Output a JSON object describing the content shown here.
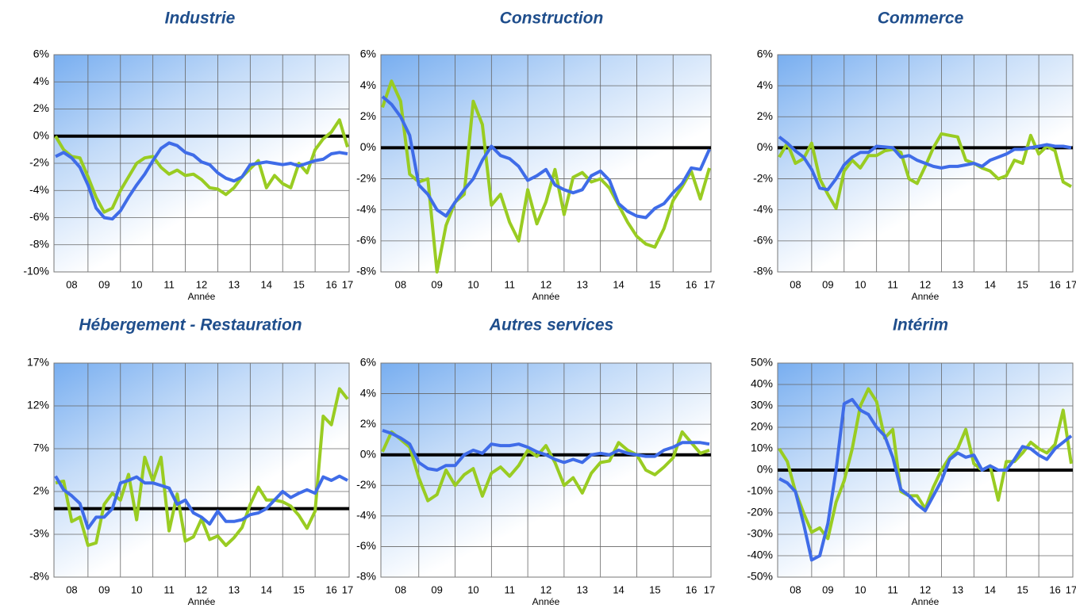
{
  "chart_data": [
    {
      "type": "line",
      "title": "Industrie",
      "x_label": "Année",
      "categories": [
        null,
        null,
        "08",
        null,
        null,
        null,
        "09",
        null,
        null,
        null,
        "10",
        null,
        null,
        null,
        "11",
        null,
        null,
        null,
        "12",
        null,
        null,
        null,
        "13",
        null,
        null,
        null,
        "14",
        null,
        null,
        null,
        "15",
        null,
        null,
        null,
        "16",
        null,
        "17"
      ],
      "series": [
        {
          "color": "#99cc22",
          "values": [
            0,
            -1,
            -1.5,
            -1.6,
            -3,
            -4.5,
            -5.6,
            -5.3,
            -4,
            -3,
            -2,
            -1.6,
            -1.5,
            -2.3,
            -2.8,
            -2.5,
            -2.9,
            -2.8,
            -3.2,
            -3.8,
            -3.9,
            -4.3,
            -3.8,
            -3,
            -2.4,
            -1.8,
            -3.8,
            -2.9,
            -3.5,
            -3.8,
            -2,
            -2.7,
            -1,
            -0.2,
            0.3,
            1.2,
            -0.8
          ]
        },
        {
          "color": "#3f6ce8",
          "values": [
            -1.5,
            -1.2,
            -1.6,
            -2.3,
            -3.6,
            -5.3,
            -6,
            -6.1,
            -5.5,
            -4.5,
            -3.6,
            -2.8,
            -1.8,
            -0.9,
            -0.5,
            -0.7,
            -1.2,
            -1.4,
            -1.9,
            -2.1,
            -2.7,
            -3.1,
            -3.3,
            -3,
            -2.1,
            -2,
            -1.9,
            -2,
            -2.1,
            -2,
            -2.2,
            -2,
            -1.8,
            -1.7,
            -1.3,
            -1.2,
            -1.3
          ]
        }
      ],
      "ylim": [
        -10,
        6
      ],
      "yticks": [
        {
          "value": -10,
          "label": "-10%"
        },
        {
          "value": -8,
          "label": "-8%"
        },
        {
          "value": -6,
          "label": "-6%"
        },
        {
          "value": -4,
          "label": "-4%"
        },
        {
          "value": -2,
          "label": "-2%"
        },
        {
          "value": 0,
          "label": "0%"
        },
        {
          "value": 2,
          "label": "2%"
        },
        {
          "value": 4,
          "label": "4%"
        },
        {
          "value": 6,
          "label": "6%"
        }
      ],
      "grid": true
    },
    {
      "type": "line",
      "title": "Construction",
      "x_label": "Année",
      "categories": [
        null,
        null,
        "08",
        null,
        null,
        null,
        "09",
        null,
        null,
        null,
        "10",
        null,
        null,
        null,
        "11",
        null,
        null,
        null,
        "12",
        null,
        null,
        null,
        "13",
        null,
        null,
        null,
        "14",
        null,
        null,
        null,
        "15",
        null,
        null,
        null,
        "16",
        null,
        "17"
      ],
      "series": [
        {
          "color": "#99cc22",
          "values": [
            2.6,
            4.3,
            3,
            -1.7,
            -2.2,
            -2,
            -8,
            -5,
            -3.5,
            -3,
            3,
            1.5,
            -3.7,
            -3,
            -4.8,
            -6,
            -2.7,
            -4.9,
            -3.5,
            -1.4,
            -4.3,
            -1.9,
            -1.6,
            -2.2,
            -2,
            -2.6,
            -3.7,
            -4.8,
            -5.7,
            -6.2,
            -6.4,
            -5.2,
            -3.4,
            -2.5,
            -1.5,
            -3.3,
            -1.3
          ]
        },
        {
          "color": "#3f6ce8",
          "values": [
            3.3,
            2.8,
            2,
            0.8,
            -2.4,
            -3,
            -4,
            -4.4,
            -3.5,
            -2.7,
            -2,
            -0.8,
            0.1,
            -0.5,
            -0.7,
            -1.2,
            -2.1,
            -1.8,
            -1.4,
            -2.4,
            -2.7,
            -2.9,
            -2.7,
            -1.8,
            -1.5,
            -2.1,
            -3.6,
            -4.1,
            -4.4,
            -4.5,
            -3.9,
            -3.6,
            -2.9,
            -2.3,
            -1.3,
            -1.4,
            -0.1
          ]
        }
      ],
      "ylim": [
        -8,
        6
      ],
      "yticks": [
        {
          "value": -8,
          "label": "-8%"
        },
        {
          "value": -6,
          "label": "-6%"
        },
        {
          "value": -4,
          "label": "-4%"
        },
        {
          "value": -2,
          "label": "-2%"
        },
        {
          "value": 0,
          "label": "0%"
        },
        {
          "value": 2,
          "label": "2%"
        },
        {
          "value": 4,
          "label": "4%"
        },
        {
          "value": 6,
          "label": "6%"
        }
      ],
      "grid": true
    },
    {
      "type": "line",
      "title": "Commerce",
      "x_label": "Année",
      "categories": [
        null,
        null,
        "08",
        null,
        null,
        null,
        "09",
        null,
        null,
        null,
        "10",
        null,
        null,
        null,
        "11",
        null,
        null,
        null,
        "12",
        null,
        null,
        null,
        "13",
        null,
        null,
        null,
        "14",
        null,
        null,
        null,
        "15",
        null,
        null,
        null,
        "16",
        null,
        "17"
      ],
      "series": [
        {
          "color": "#99cc22",
          "values": [
            -0.6,
            0.3,
            -1,
            -0.7,
            0.3,
            -2,
            -3,
            -3.9,
            -1.5,
            -0.8,
            -1.3,
            -0.5,
            -0.5,
            -0.2,
            -0.1,
            -0.3,
            -2,
            -2.3,
            -1.2,
            0,
            0.9,
            0.8,
            0.7,
            -0.8,
            -1,
            -1.3,
            -1.5,
            -2,
            -1.8,
            -0.8,
            -1,
            0.8,
            -0.4,
            0.1,
            -0.2,
            -2.2,
            -2.5
          ]
        },
        {
          "color": "#3f6ce8",
          "values": [
            0.7,
            0.3,
            -0.2,
            -0.6,
            -1.4,
            -2.6,
            -2.7,
            -2,
            -1.1,
            -0.6,
            -0.3,
            -0.3,
            0.1,
            0.05,
            0,
            -0.6,
            -0.5,
            -0.8,
            -1,
            -1.2,
            -1.3,
            -1.2,
            -1.2,
            -1.1,
            -1,
            -1.2,
            -0.8,
            -0.6,
            -0.4,
            -0.1,
            -0.1,
            0,
            0.1,
            0.2,
            0.1,
            0.1,
            0
          ]
        }
      ],
      "ylim": [
        -8,
        6
      ],
      "yticks": [
        {
          "value": -8,
          "label": "-8%"
        },
        {
          "value": -6,
          "label": "-6%"
        },
        {
          "value": -4,
          "label": "-4%"
        },
        {
          "value": -2,
          "label": "-2%"
        },
        {
          "value": 0,
          "label": "0%"
        },
        {
          "value": 2,
          "label": "2%"
        },
        {
          "value": 4,
          "label": "4%"
        },
        {
          "value": 6,
          "label": "6%"
        }
      ],
      "grid": true
    },
    {
      "type": "line",
      "title": "Hébergement - Restauration",
      "x_label": "Année",
      "categories": [
        null,
        null,
        "08",
        null,
        null,
        null,
        "09",
        null,
        null,
        null,
        "10",
        null,
        null,
        null,
        "11",
        null,
        null,
        null,
        "12",
        null,
        null,
        null,
        "13",
        null,
        null,
        null,
        "14",
        null,
        null,
        null,
        "15",
        null,
        null,
        null,
        "16",
        null,
        "17"
      ],
      "series": [
        {
          "color": "#99cc22",
          "values": [
            3,
            3.2,
            -1.5,
            -1,
            -4.3,
            -4,
            0.5,
            1.8,
            1,
            4,
            -1.3,
            6,
            3.2,
            6,
            -2.6,
            1.7,
            -3.8,
            -3.3,
            -1.2,
            -3.6,
            -3.2,
            -4.3,
            -3.4,
            -2.2,
            0.5,
            2.5,
            1,
            1,
            0.8,
            0.3,
            -0.8,
            -2.3,
            -0.3,
            10.8,
            9.8,
            14,
            12.8
          ]
        },
        {
          "color": "#3f6ce8",
          "values": [
            3.8,
            2.2,
            1.5,
            0.6,
            -2.3,
            -1,
            -1,
            0,
            3,
            3.3,
            3.7,
            3,
            3,
            2.7,
            2.4,
            0.5,
            1,
            -0.5,
            -1,
            -1.8,
            -0.3,
            -1.5,
            -1.5,
            -1.3,
            -0.7,
            -0.5,
            0,
            1,
            2,
            1.3,
            1.8,
            2.2,
            1.8,
            3.7,
            3.3,
            3.8,
            3.3
          ]
        }
      ],
      "ylim": [
        -8,
        17
      ],
      "yticks": [
        {
          "value": -8,
          "label": "-8%"
        },
        {
          "value": -3,
          "label": "-3%"
        },
        {
          "value": 2,
          "label": "2%"
        },
        {
          "value": 7,
          "label": "7%"
        },
        {
          "value": 12,
          "label": "12%"
        },
        {
          "value": 17,
          "label": "17%"
        }
      ],
      "grid": true
    },
    {
      "type": "line",
      "title": "Autres services",
      "x_label": "Année",
      "categories": [
        null,
        null,
        "08",
        null,
        null,
        null,
        "09",
        null,
        null,
        null,
        "10",
        null,
        null,
        null,
        "11",
        null,
        null,
        null,
        "12",
        null,
        null,
        null,
        "13",
        null,
        null,
        null,
        "14",
        null,
        null,
        null,
        "15",
        null,
        null,
        null,
        "16",
        null,
        "17"
      ],
      "series": [
        {
          "color": "#99cc22",
          "values": [
            0.2,
            1.5,
            1,
            0.5,
            -1.5,
            -3,
            -2.6,
            -1,
            -2,
            -1.3,
            -0.9,
            -2.7,
            -1.2,
            -0.8,
            -1.4,
            -0.7,
            0.3,
            -0.1,
            0.6,
            -0.5,
            -2,
            -1.5,
            -2.5,
            -1.2,
            -0.5,
            -0.4,
            0.8,
            0.3,
            0,
            -1,
            -1.3,
            -0.8,
            -0.2,
            1.5,
            0.8,
            0.1,
            0.3
          ]
        },
        {
          "color": "#3f6ce8",
          "values": [
            1.6,
            1.4,
            1.1,
            0.7,
            -0.5,
            -0.9,
            -1,
            -0.7,
            -0.7,
            0,
            0.3,
            0.1,
            0.7,
            0.6,
            0.6,
            0.7,
            0.5,
            0.2,
            0,
            -0.3,
            -0.5,
            -0.3,
            -0.5,
            0,
            0.1,
            0,
            0.3,
            0.1,
            0,
            -0.1,
            -0.1,
            0.3,
            0.5,
            0.8,
            0.8,
            0.8,
            0.7
          ]
        }
      ],
      "ylim": [
        -8,
        6
      ],
      "yticks": [
        {
          "value": -8,
          "label": "-8%"
        },
        {
          "value": -6,
          "label": "-6%"
        },
        {
          "value": -4,
          "label": "-4%"
        },
        {
          "value": -2,
          "label": "-2%"
        },
        {
          "value": 0,
          "label": "0%"
        },
        {
          "value": 2,
          "label": "2%"
        },
        {
          "value": 4,
          "label": "4%"
        },
        {
          "value": 6,
          "label": "6%"
        }
      ],
      "grid": true
    },
    {
      "type": "line",
      "title": "Intérim",
      "x_label": "Année",
      "categories": [
        null,
        null,
        "08",
        null,
        null,
        null,
        "09",
        null,
        null,
        null,
        "10",
        null,
        null,
        null,
        "11",
        null,
        null,
        null,
        "12",
        null,
        null,
        null,
        "13",
        null,
        null,
        null,
        "14",
        null,
        null,
        null,
        "15",
        null,
        null,
        null,
        "16",
        null,
        "17"
      ],
      "series": [
        {
          "color": "#99cc22",
          "values": [
            10,
            4,
            -10,
            -20,
            -29,
            -27,
            -32,
            -15,
            -5,
            10,
            30,
            38,
            32,
            15,
            19,
            -10,
            -12,
            -12,
            -18,
            -8,
            0,
            6,
            10,
            19,
            3,
            0,
            2,
            -14,
            4,
            4,
            8,
            13,
            10,
            8,
            12,
            28,
            3
          ]
        },
        {
          "color": "#3f6ce8",
          "values": [
            -4,
            -6,
            -10,
            -25,
            -42,
            -40,
            -25,
            0,
            31,
            33,
            28,
            26,
            20,
            16,
            6,
            -9,
            -12,
            -16,
            -19,
            -12,
            -5,
            5,
            8,
            6,
            7,
            0,
            2,
            0,
            0,
            5,
            11,
            10,
            7,
            5,
            10,
            13,
            16
          ]
        }
      ],
      "ylim": [
        -50,
        50
      ],
      "yticks": [
        {
          "value": -50,
          "label": "-50%"
        },
        {
          "value": -40,
          "label": "-40%"
        },
        {
          "value": -30,
          "label": "-30%"
        },
        {
          "value": -20,
          "label": "-20%"
        },
        {
          "value": -10,
          "label": "-10%"
        },
        {
          "value": 0,
          "label": "0%"
        },
        {
          "value": 10,
          "label": "10%"
        },
        {
          "value": 20,
          "label": "20%"
        },
        {
          "value": 30,
          "label": "30%"
        },
        {
          "value": 40,
          "label": "40%"
        },
        {
          "value": 50,
          "label": "50%"
        }
      ],
      "grid": true
    }
  ]
}
